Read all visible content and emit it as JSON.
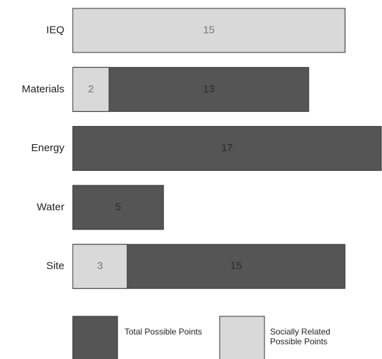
{
  "chart_data": {
    "type": "overlaid-bar",
    "orientation": "horizontal",
    "categories": [
      "IEQ",
      "Materials",
      "Energy",
      "Water",
      "Site"
    ],
    "series": [
      {
        "name": "Total Possible Points",
        "color": "#555555",
        "values": [
          15,
          13,
          17,
          5,
          15
        ]
      },
      {
        "name": "Socially Related Possible Points",
        "color": "#d9d9d9",
        "values": [
          15,
          2,
          null,
          null,
          3
        ]
      }
    ],
    "xlim": [
      0,
      17
    ]
  }
}
